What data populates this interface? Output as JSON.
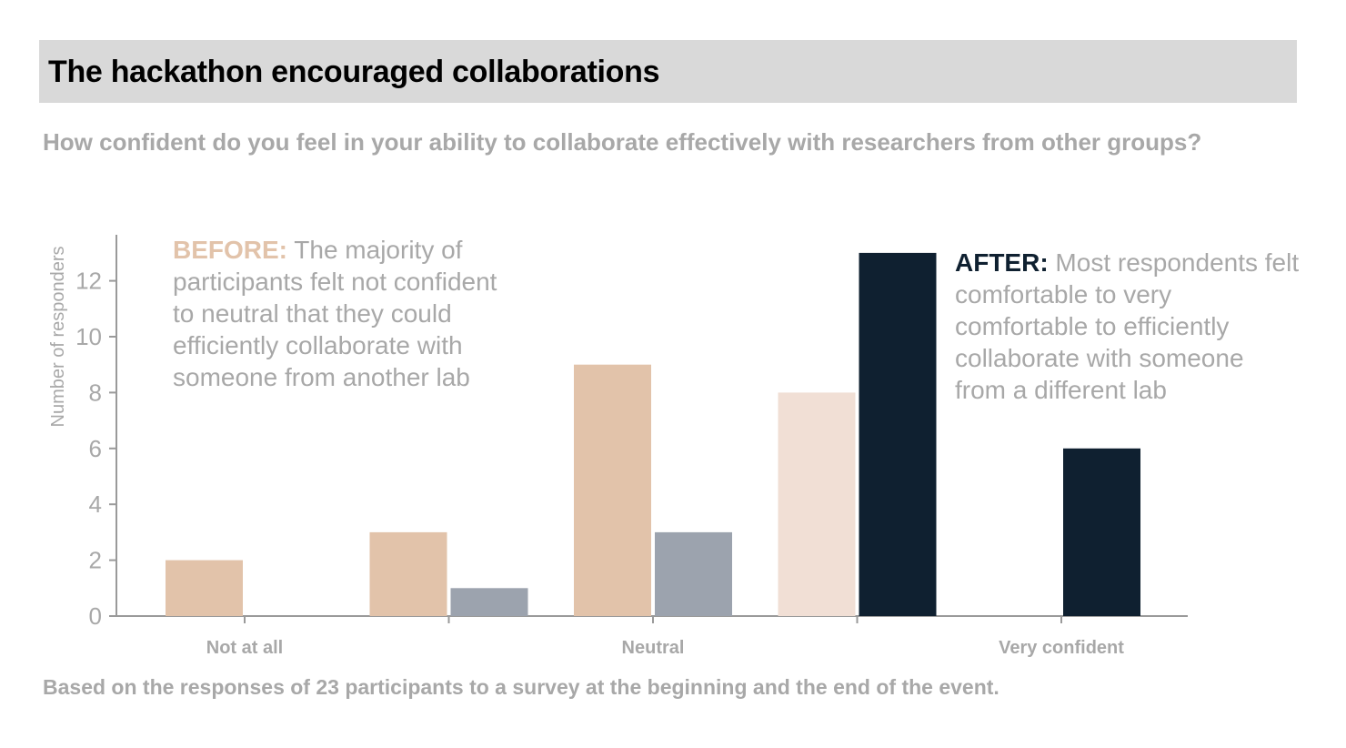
{
  "header": {
    "title": "The hackathon encouraged collaborations",
    "subtitle": "How confident do you feel in your ability to collaborate effectively with researchers from other groups?"
  },
  "annotations": {
    "before_lead": "BEFORE:",
    "before_text": " The majority of participants felt not confident to neutral that they could efficiently collaborate with someone from another lab",
    "after_lead": "AFTER:",
    "after_text": " Most respondents felt comfortable to very comfortable to efficiently collaborate with someone from a different lab"
  },
  "footnote": "Based on the responses of 23 participants to a survey at the beginning and the end of the event.",
  "chart_data": {
    "type": "bar",
    "categories": [
      "Not at all",
      "",
      "Neutral",
      "",
      "Very confident"
    ],
    "series": [
      {
        "values": [
          2,
          3,
          9,
          8,
          0
        ],
        "colors": [
          "#e2c3aa",
          "#e2c3aa",
          "#e2c3aa",
          "#f1dfd5",
          "#e2c3aa"
        ]
      },
      {
        "values": [
          0,
          1,
          3,
          13,
          6
        ],
        "colors": [
          "#9ca3ae",
          "#9ca3ae",
          "#9ca3ae",
          "#0f2030",
          "#0f2030"
        ]
      }
    ],
    "ylabel": "Number of responders",
    "xlabel": "",
    "ylim": [
      0,
      13.7
    ],
    "yticks": [
      0,
      2,
      4,
      6,
      8,
      10,
      12
    ],
    "grid": false
  }
}
